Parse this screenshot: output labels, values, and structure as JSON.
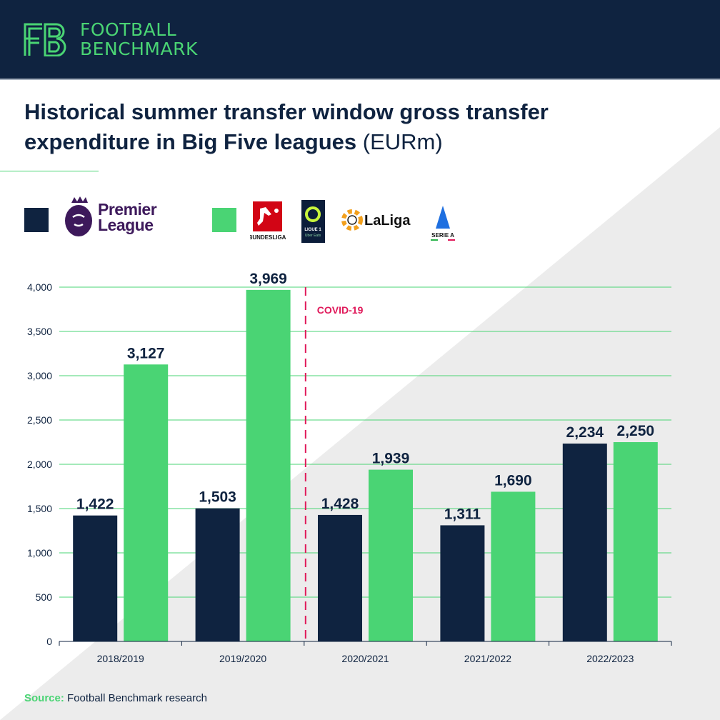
{
  "header": {
    "brand_line1": "FOOTBALL",
    "brand_line2": "BENCHMARK",
    "logo_mark": "FB"
  },
  "title": {
    "main": "Historical summer transfer window gross transfer expenditure in Big Five leagues",
    "unit": "(EURm)"
  },
  "legend": [
    {
      "name": "Premier League",
      "color": "#0f2340",
      "logos": [
        "Premier League"
      ]
    },
    {
      "name": "Other Big Five leagues",
      "color": "#4ad474",
      "logos": [
        "BUNDESLIGA",
        "LIGUE 1 Uber Eats",
        "LaLiga",
        "SERIE A"
      ]
    }
  ],
  "source": {
    "label": "Source:",
    "text": "Football Benchmark research"
  },
  "chart_data": {
    "type": "bar",
    "title": "Historical summer transfer window gross transfer expenditure in Big Five leagues (EURm)",
    "categories": [
      "2018/2019",
      "2019/2020",
      "2020/2021",
      "2021/2022",
      "2022/2023"
    ],
    "series": [
      {
        "values": [
          1422,
          1503,
          1428,
          1311,
          2234
        ],
        "color": "#0f2340"
      },
      {
        "values": [
          3127,
          3969,
          1939,
          1690,
          2250
        ],
        "color": "#4ad474"
      }
    ],
    "data_labels": [
      [
        "1,422",
        "1,503",
        "1,428",
        "1,311",
        "2,234"
      ],
      [
        "3,127",
        "3,969",
        "1,939",
        "1,690",
        "2,250"
      ]
    ],
    "ylim": [
      0,
      4000
    ],
    "yticks": [
      0,
      500,
      1000,
      1500,
      2000,
      2500,
      3000,
      3500,
      4000
    ],
    "ytick_labels": [
      "0",
      "500",
      "1,000",
      "1,500",
      "2,000",
      "2,500",
      "3,000",
      "3,500",
      "4,000"
    ],
    "grid": true,
    "grid_color": "#4ad474",
    "annotation": {
      "text": "COVID-19",
      "between": [
        "2019/2020",
        "2020/2021"
      ],
      "color": "#e0195a"
    }
  }
}
